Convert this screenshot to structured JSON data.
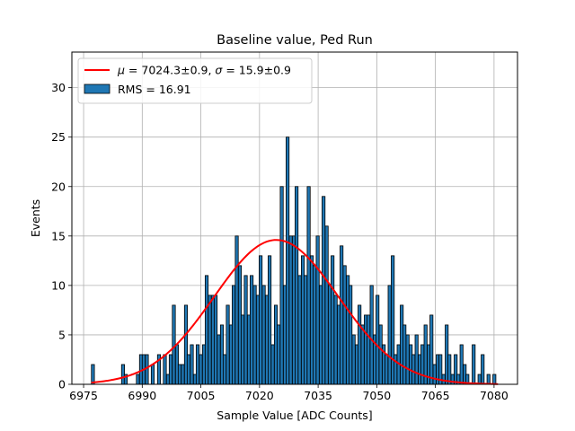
{
  "chart_data": {
    "type": "bar",
    "title": "Baseline value, Ped Run",
    "xlabel": "Sample Value [ADC Counts]",
    "ylabel": "Events",
    "xlim": [
      6972.0,
      7086.0
    ],
    "ylim": [
      0,
      33.6
    ],
    "xticks": [
      6975,
      6990,
      7005,
      7020,
      7035,
      7050,
      7065,
      7080
    ],
    "yticks": [
      0,
      5,
      10,
      15,
      20,
      25,
      30
    ],
    "grid": true,
    "legend_placement": "top-left",
    "colors": {
      "bars": "#1f77b4",
      "bar_edge": "#000000",
      "fit": "#ff0000",
      "grid": "#b0b0b0"
    },
    "histogram": {
      "name": "RMS = 16.91",
      "bin_width": 0.7667,
      "bin_starts": [
        6977.0,
        6977.8,
        6978.5,
        6979.3,
        6980.1,
        6980.8,
        6981.6,
        6982.4,
        6983.1,
        6983.9,
        6984.7,
        6985.4,
        6986.2,
        6987.0,
        6987.7,
        6988.5,
        6989.3,
        6990.0,
        6990.8,
        6991.6,
        6992.3,
        6993.1,
        6993.9,
        6994.6,
        6995.4,
        6996.2,
        6996.9,
        6997.7,
        6998.5,
        6999.2,
        7000.0,
        7000.8,
        7001.5,
        7002.3,
        7003.1,
        7003.8,
        7004.6,
        7005.4,
        7006.1,
        7006.9,
        7007.7,
        7008.4,
        7009.2,
        7010.0,
        7010.7,
        7011.5,
        7012.3,
        7013.0,
        7013.8,
        7014.6,
        7015.3,
        7016.1,
        7016.9,
        7017.6,
        7018.4,
        7019.2,
        7019.9,
        7020.7,
        7021.5,
        7022.2,
        7023.0,
        7023.8,
        7024.5,
        7025.3,
        7026.1,
        7026.8,
        7027.6,
        7028.4,
        7029.1,
        7029.9,
        7030.7,
        7031.4,
        7032.2,
        7033.0,
        7033.7,
        7034.5,
        7035.3,
        7036.0,
        7036.8,
        7037.6,
        7038.3,
        7039.1,
        7039.9,
        7040.6,
        7041.4,
        7042.2,
        7042.9,
        7043.7,
        7044.5,
        7045.2,
        7046.0,
        7046.8,
        7047.5,
        7048.3,
        7049.1,
        7049.8,
        7050.6,
        7051.4,
        7052.1,
        7052.9,
        7053.7,
        7054.4,
        7055.2,
        7056.0,
        7056.7,
        7057.5,
        7058.3,
        7059.0,
        7059.8,
        7060.6,
        7061.3,
        7062.1,
        7062.9,
        7063.6,
        7064.4,
        7065.2,
        7065.9,
        7066.7,
        7067.5,
        7068.2,
        7069.0,
        7069.8,
        7070.5,
        7071.3,
        7072.1,
        7072.8,
        7073.6,
        7074.4,
        7075.1,
        7075.9,
        7076.7,
        7077.4,
        7078.2,
        7079.0,
        7079.7
      ],
      "counts": [
        2,
        0,
        0,
        0,
        0,
        0,
        0,
        0,
        0,
        0,
        2,
        1,
        0,
        0,
        0,
        1,
        3,
        3,
        3,
        0,
        2,
        0,
        3,
        0,
        3,
        1,
        3,
        8,
        4,
        2,
        2,
        8,
        3,
        4,
        1,
        4,
        3,
        4,
        11,
        9,
        9,
        9,
        5,
        6,
        3,
        8,
        6,
        10,
        15,
        12,
        7,
        11,
        7,
        11,
        10,
        9,
        13,
        10,
        9,
        13,
        4,
        8,
        6,
        20,
        10,
        25,
        15,
        15,
        20,
        11,
        13,
        11,
        20,
        13,
        12,
        15,
        10,
        19,
        16,
        10,
        13,
        9,
        8,
        14,
        12,
        11,
        10,
        5,
        4,
        8,
        6,
        7,
        7,
        10,
        5,
        9,
        6,
        4,
        3,
        10,
        13,
        3,
        4,
        8,
        6,
        5,
        4,
        3,
        5,
        3,
        4,
        6,
        4,
        7,
        2,
        3,
        3,
        1,
        6,
        3,
        1,
        3,
        1,
        4,
        2,
        1,
        0,
        4,
        0,
        1,
        3,
        0,
        1,
        0,
        1,
        0,
        0,
        0
      ]
    },
    "fit": {
      "name": "$\\mu = 7024.3$±0.9, $\\sigma = 15.9$±0.9",
      "mu": 7024.3,
      "sigma": 15.9,
      "amplitude": 14.6,
      "x_range": [
        6977.0,
        7081.0
      ]
    }
  }
}
